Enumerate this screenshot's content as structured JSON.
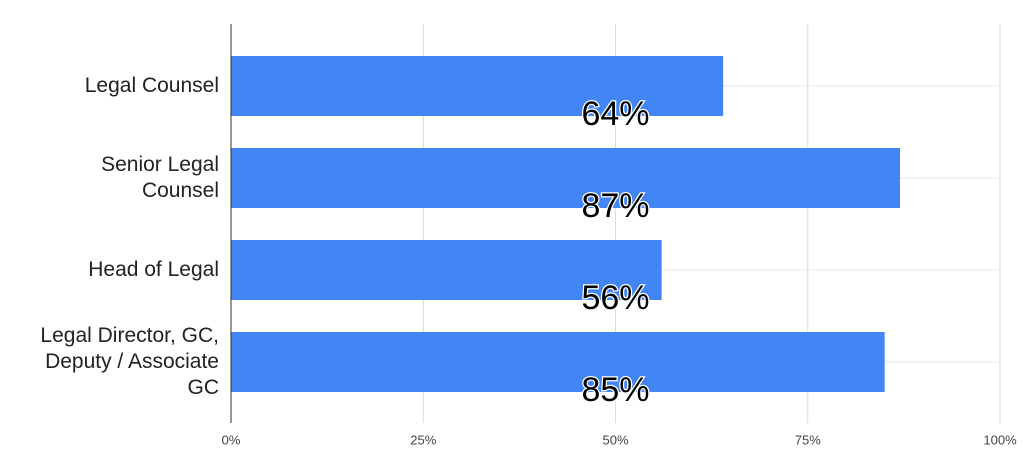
{
  "chart_data": {
    "type": "hbar",
    "categories": [
      "Legal Counsel",
      "Senior Legal Counsel",
      "Head of Legal",
      "Legal Director, GC, Deputy / Associate GC"
    ],
    "values": [
      64,
      87,
      56,
      85
    ],
    "value_labels": [
      "64%",
      "87%",
      "56%",
      "85%"
    ],
    "color": "#4285f4",
    "xlim": [
      0,
      100
    ],
    "xticks": [
      {
        "value": 0,
        "label": "0%"
      },
      {
        "value": 25,
        "label": "25%"
      },
      {
        "value": 50,
        "label": "50%"
      },
      {
        "value": 75,
        "label": "75%"
      },
      {
        "value": 100,
        "label": "100%"
      }
    ],
    "grid": true
  }
}
